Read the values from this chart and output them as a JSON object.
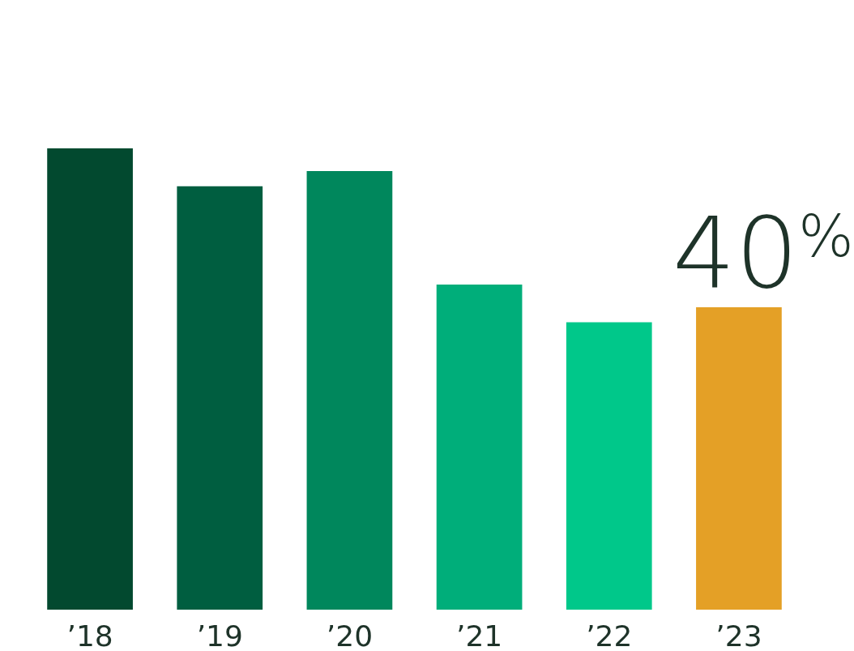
{
  "chart_data": {
    "type": "bar",
    "categories": [
      "’18",
      "’19",
      "’20",
      "’21",
      "’22",
      "’23"
    ],
    "values": [
      61,
      56,
      58,
      43,
      38,
      40
    ],
    "colors": [
      "#02492f",
      "#005e40",
      "#00875c",
      "#00ae7a",
      "#00c88a",
      "#e4a026"
    ],
    "value_labels": [
      null,
      null,
      null,
      null,
      null,
      "40%"
    ]
  }
}
